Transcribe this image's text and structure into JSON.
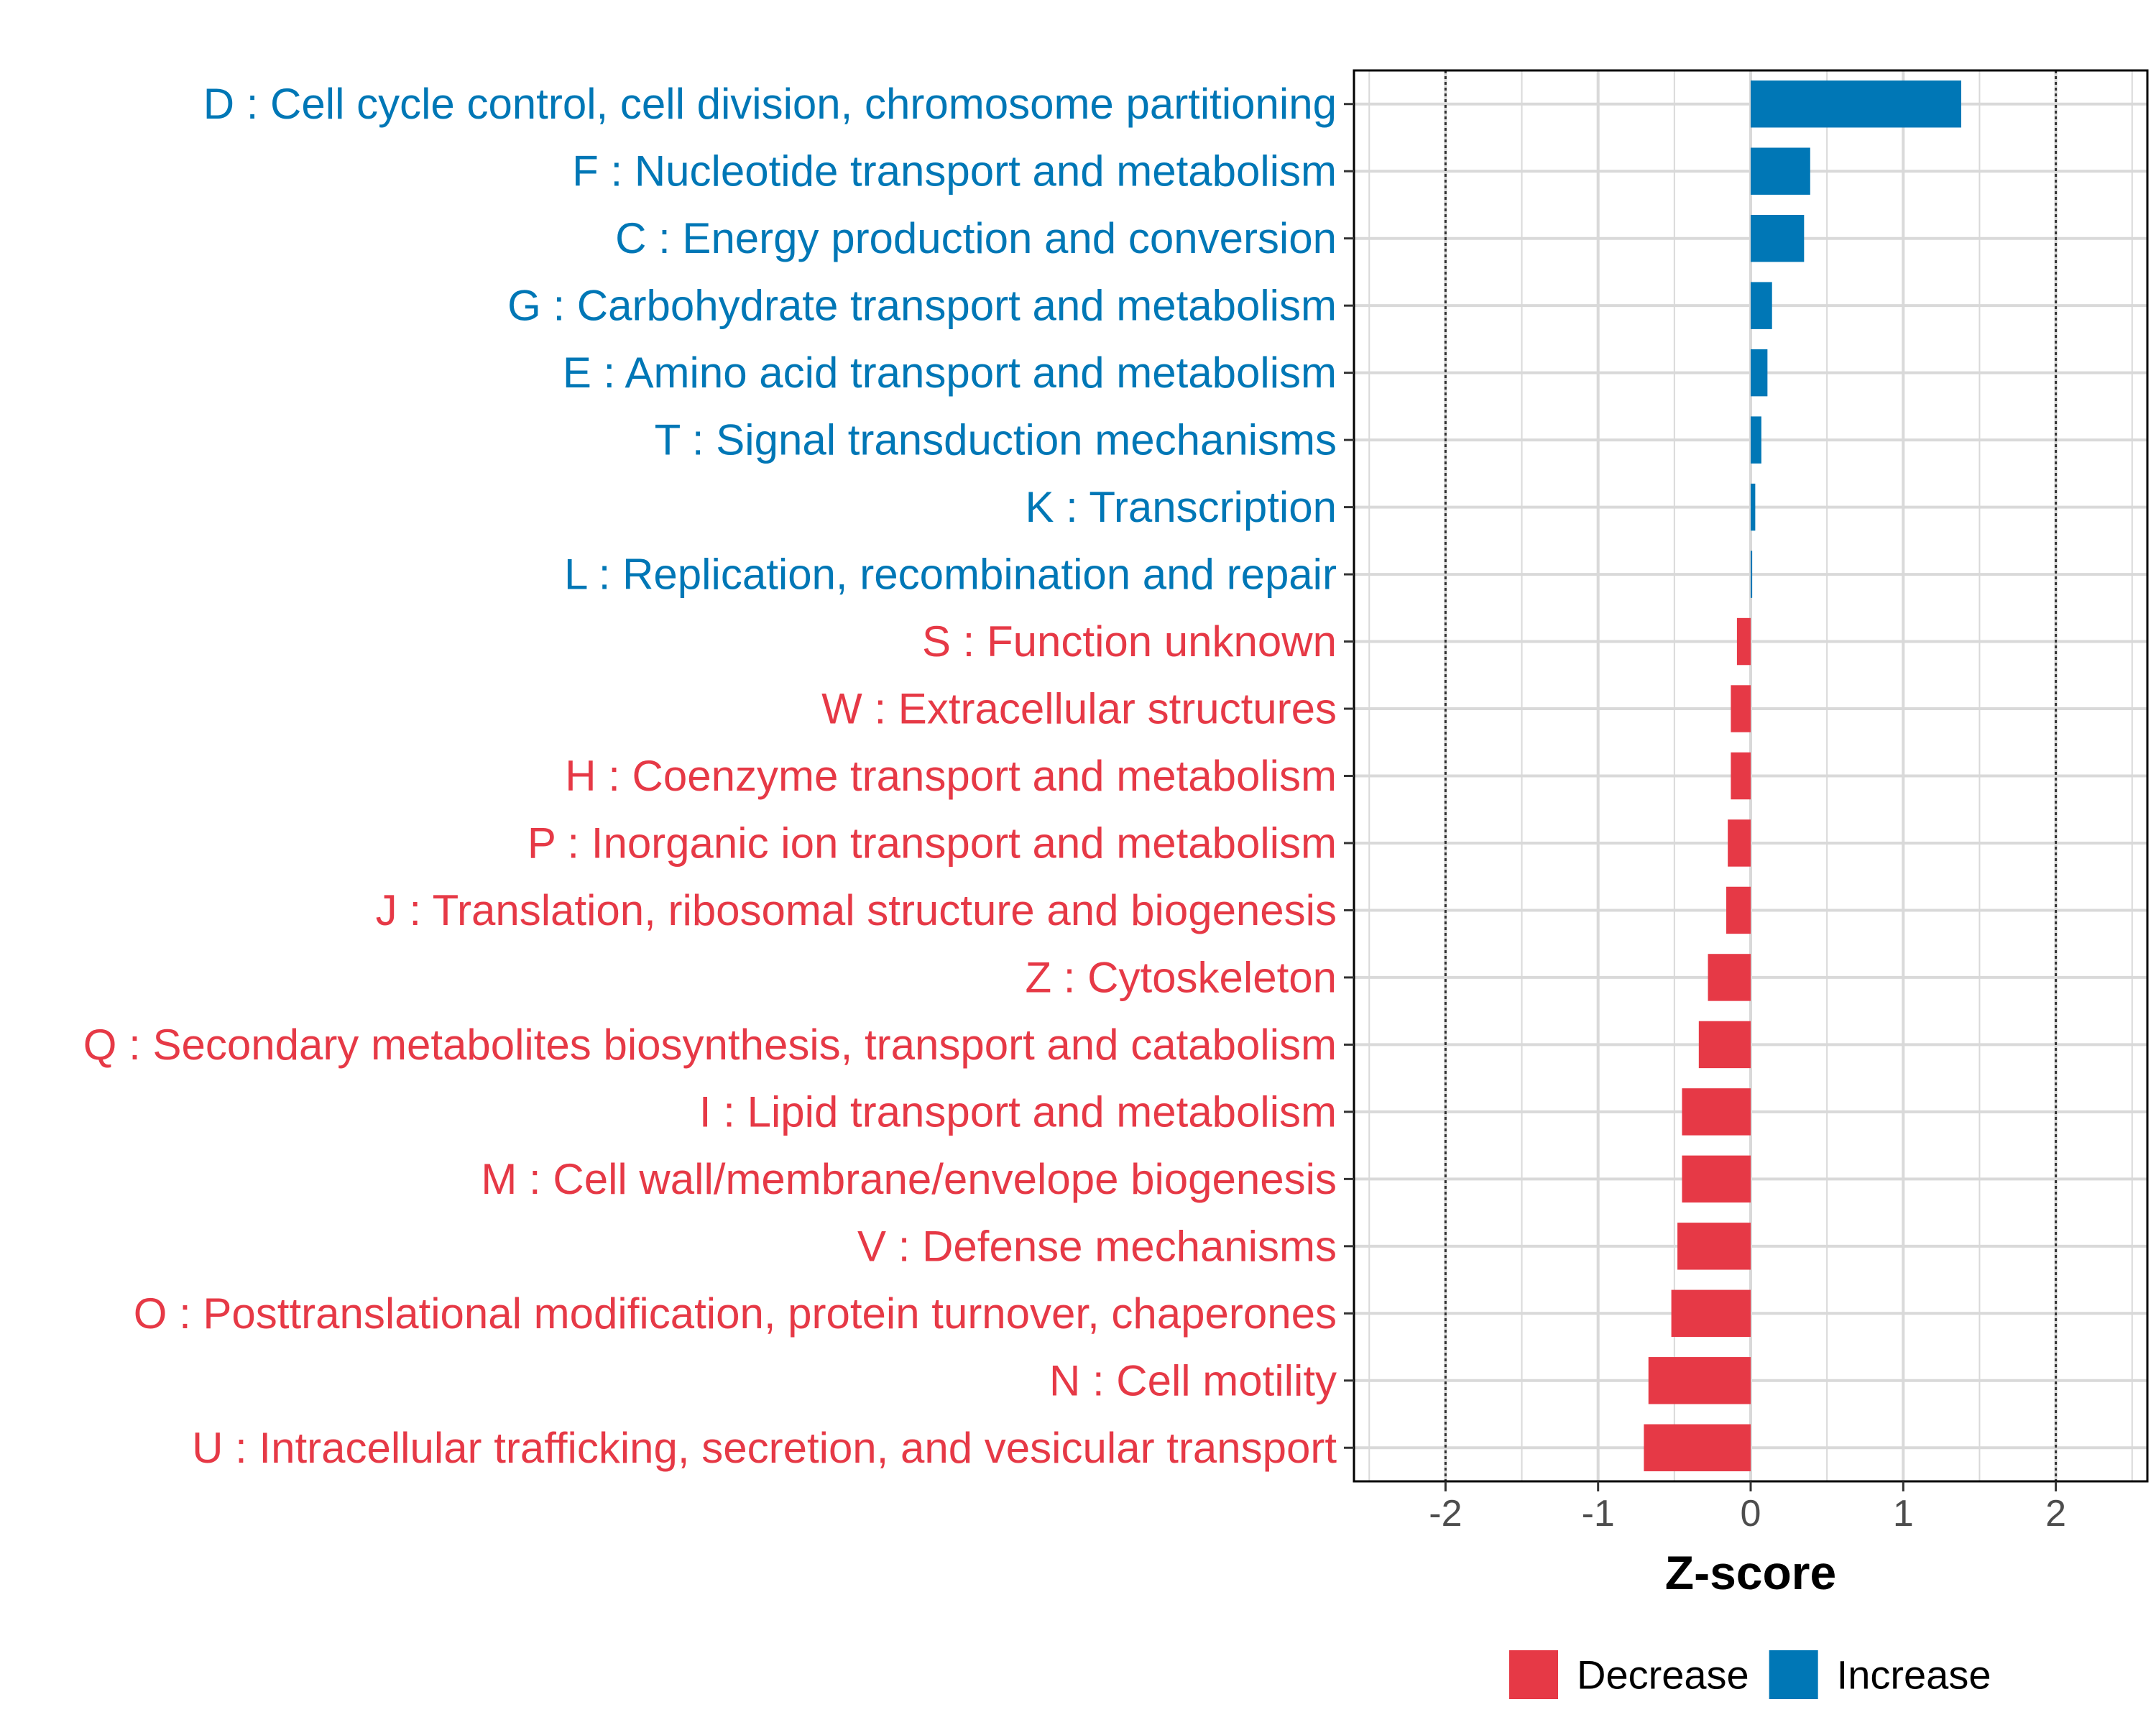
{
  "chart_data": {
    "type": "bar",
    "orientation": "horizontal",
    "xlabel": "Z-score",
    "ylabel": "",
    "xlim": [
      -2.6,
      2.6
    ],
    "xticks": [
      -2,
      -1,
      0,
      1,
      2
    ],
    "xtick_labels": [
      "-2",
      "-1",
      "0",
      "1",
      "2"
    ],
    "reference_lines": [
      -2,
      2
    ],
    "grid": true,
    "legend_position": "bottom-right",
    "colors": {
      "Decrease": "#e63946",
      "Increase": "#0077b6"
    },
    "legend": [
      {
        "name": "Decrease",
        "color": "#e63946"
      },
      {
        "name": "Increase",
        "color": "#0077b6"
      }
    ],
    "categories": [
      "D : Cell cycle control, cell division, chromosome partitioning",
      "F : Nucleotide transport and metabolism",
      "C : Energy production and conversion",
      "G : Carbohydrate transport and metabolism",
      "E : Amino acid transport and metabolism",
      "T : Signal transduction mechanisms",
      "K : Transcription",
      "L : Replication, recombination and repair",
      "S : Function unknown",
      "W : Extracellular structures",
      "H : Coenzyme transport and metabolism",
      "P : Inorganic ion transport and metabolism",
      "J : Translation, ribosomal structure and biogenesis",
      "Z : Cytoskeleton",
      "Q : Secondary metabolites biosynthesis, transport and catabolism",
      "I : Lipid transport and metabolism",
      "M : Cell wall/membrane/envelope biogenesis",
      "V : Defense mechanisms",
      "O : Posttranslational modification, protein turnover, chaperones",
      "N : Cell motility",
      "U : Intracellular trafficking, secretion, and vesicular transport"
    ],
    "values": [
      1.38,
      0.39,
      0.35,
      0.14,
      0.11,
      0.07,
      0.03,
      0.01,
      -0.09,
      -0.13,
      -0.13,
      -0.15,
      -0.16,
      -0.28,
      -0.34,
      -0.45,
      -0.45,
      -0.48,
      -0.52,
      -0.67,
      -0.7
    ],
    "groups": [
      "Increase",
      "Increase",
      "Increase",
      "Increase",
      "Increase",
      "Increase",
      "Increase",
      "Increase",
      "Decrease",
      "Decrease",
      "Decrease",
      "Decrease",
      "Decrease",
      "Decrease",
      "Decrease",
      "Decrease",
      "Decrease",
      "Decrease",
      "Decrease",
      "Decrease",
      "Decrease"
    ]
  }
}
